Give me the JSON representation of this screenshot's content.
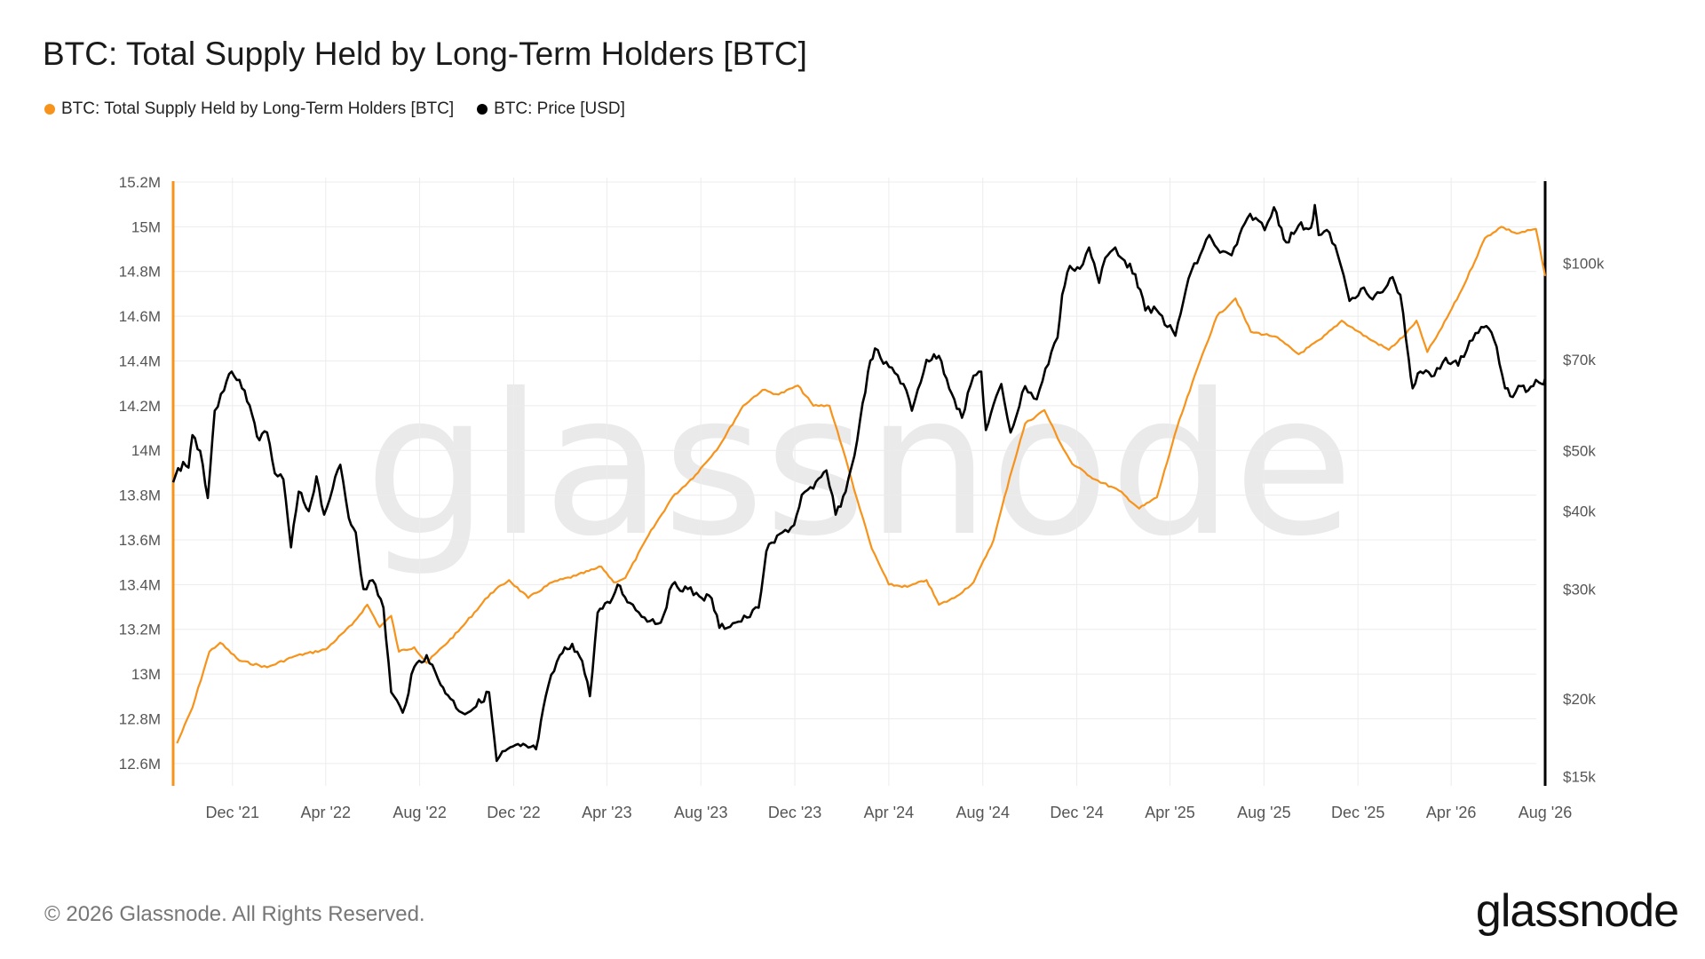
{
  "title": "BTC: Total Supply Held by Long-Term Holders [BTC]",
  "footer": {
    "copyright": "© 2026 Glassnode. All Rights Reserved."
  },
  "brand": {
    "logo_text": "glassnode",
    "watermark": "glassnode"
  },
  "colors": {
    "supply": "#f7931a",
    "price": "#000000",
    "grid": "#ececec",
    "axis_text": "#555555",
    "watermark": "#eaeaea"
  },
  "chart_data": {
    "type": "line",
    "title": "BTC: Total Supply Held by Long-Term Holders [BTC]",
    "legend_position": "top-left",
    "grid": true,
    "x_range": [
      "2021-09-15",
      "2026-08-01"
    ],
    "x_ticks": [
      {
        "date": "2021-12-01",
        "label": "Dec '21"
      },
      {
        "date": "2022-04-01",
        "label": "Apr '22"
      },
      {
        "date": "2022-08-01",
        "label": "Aug '22"
      },
      {
        "date": "2022-12-01",
        "label": "Dec '22"
      },
      {
        "date": "2023-04-01",
        "label": "Apr '23"
      },
      {
        "date": "2023-08-01",
        "label": "Aug '23"
      },
      {
        "date": "2023-12-01",
        "label": "Dec '23"
      },
      {
        "date": "2024-04-01",
        "label": "Apr '24"
      },
      {
        "date": "2024-08-01",
        "label": "Aug '24"
      },
      {
        "date": "2024-12-01",
        "label": "Dec '24"
      },
      {
        "date": "2025-04-01",
        "label": "Apr '25"
      },
      {
        "date": "2025-08-01",
        "label": "Aug '25"
      },
      {
        "date": "2025-12-01",
        "label": "Dec '25"
      },
      {
        "date": "2026-04-01",
        "label": "Apr '26"
      },
      {
        "date": "2026-08-01",
        "label": "Aug '26"
      }
    ],
    "y_left": {
      "range": [
        12.5,
        15.2
      ],
      "unit": "M BTC",
      "ticks": [
        {
          "value": 15.2,
          "label": "15.2M"
        },
        {
          "value": 15.0,
          "label": "15M"
        },
        {
          "value": 14.8,
          "label": "14.8M"
        },
        {
          "value": 14.6,
          "label": "14.6M"
        },
        {
          "value": 14.4,
          "label": "14.4M"
        },
        {
          "value": 14.2,
          "label": "14.2M"
        },
        {
          "value": 14.0,
          "label": "14M"
        },
        {
          "value": 13.8,
          "label": "13.8M"
        },
        {
          "value": 13.6,
          "label": "13.6M"
        },
        {
          "value": 13.4,
          "label": "13.4M"
        },
        {
          "value": 13.2,
          "label": "13.2M"
        },
        {
          "value": 13.0,
          "label": "13M"
        },
        {
          "value": 12.8,
          "label": "12.8M"
        },
        {
          "value": 12.6,
          "label": "12.6M"
        }
      ]
    },
    "y_right": {
      "scale": "log",
      "range": [
        14500,
        135000
      ],
      "ticks": [
        {
          "value": 100000,
          "label": "$100k"
        },
        {
          "value": 70000,
          "label": "$70k"
        },
        {
          "value": 50000,
          "label": "$50k"
        },
        {
          "value": 40000,
          "label": "$40k"
        },
        {
          "value": 30000,
          "label": "$30k"
        },
        {
          "value": 20000,
          "label": "$20k"
        },
        {
          "value": 15000,
          "label": "$15k"
        }
      ]
    },
    "series": [
      {
        "name": "BTC: Total Supply Held by Long-Term Holders [BTC]",
        "axis": "left",
        "color": "#f7931a",
        "points": [
          [
            "2021-09-20",
            12.69
          ],
          [
            "2021-10-10",
            12.85
          ],
          [
            "2021-11-01",
            13.1
          ],
          [
            "2021-11-15",
            13.14
          ],
          [
            "2021-12-10",
            13.06
          ],
          [
            "2022-01-15",
            13.03
          ],
          [
            "2022-02-20",
            13.08
          ],
          [
            "2022-04-01",
            13.11
          ],
          [
            "2022-05-05",
            13.22
          ],
          [
            "2022-05-25",
            13.31
          ],
          [
            "2022-06-10",
            13.21
          ],
          [
            "2022-06-25",
            13.26
          ],
          [
            "2022-07-05",
            13.1
          ],
          [
            "2022-07-25",
            13.12
          ],
          [
            "2022-08-10",
            13.05
          ],
          [
            "2022-09-20",
            13.19
          ],
          [
            "2022-11-01",
            13.36
          ],
          [
            "2022-11-25",
            13.42
          ],
          [
            "2022-12-20",
            13.34
          ],
          [
            "2023-01-20",
            13.41
          ],
          [
            "2023-02-20",
            13.44
          ],
          [
            "2023-03-25",
            13.48
          ],
          [
            "2023-04-10",
            13.41
          ],
          [
            "2023-04-25",
            13.43
          ],
          [
            "2023-05-25",
            13.62
          ],
          [
            "2023-06-25",
            13.79
          ],
          [
            "2023-07-25",
            13.89
          ],
          [
            "2023-08-25",
            14.02
          ],
          [
            "2023-09-25",
            14.2
          ],
          [
            "2023-10-20",
            14.27
          ],
          [
            "2023-11-10",
            14.25
          ],
          [
            "2023-12-05",
            14.29
          ],
          [
            "2023-12-25",
            14.2
          ],
          [
            "2024-01-15",
            14.2
          ],
          [
            "2024-02-01",
            14.01
          ],
          [
            "2024-02-20",
            13.78
          ],
          [
            "2024-03-10",
            13.56
          ],
          [
            "2024-04-01",
            13.4
          ],
          [
            "2024-04-25",
            13.39
          ],
          [
            "2024-05-20",
            13.42
          ],
          [
            "2024-06-05",
            13.31
          ],
          [
            "2024-06-25",
            13.34
          ],
          [
            "2024-07-20",
            13.41
          ],
          [
            "2024-08-15",
            13.6
          ],
          [
            "2024-09-05",
            13.88
          ],
          [
            "2024-09-25",
            14.12
          ],
          [
            "2024-10-20",
            14.18
          ],
          [
            "2024-11-10",
            14.03
          ],
          [
            "2024-11-25",
            13.94
          ],
          [
            "2024-12-25",
            13.87
          ],
          [
            "2025-01-25",
            13.82
          ],
          [
            "2025-02-20",
            13.74
          ],
          [
            "2025-03-15",
            13.79
          ],
          [
            "2025-04-10",
            14.1
          ],
          [
            "2025-05-10",
            14.4
          ],
          [
            "2025-06-01",
            14.6
          ],
          [
            "2025-06-25",
            14.68
          ],
          [
            "2025-07-15",
            14.53
          ],
          [
            "2025-08-15",
            14.51
          ],
          [
            "2025-09-15",
            14.43
          ],
          [
            "2025-10-15",
            14.5
          ],
          [
            "2025-11-10",
            14.58
          ],
          [
            "2025-12-15",
            14.5
          ],
          [
            "2026-01-10",
            14.45
          ],
          [
            "2026-02-01",
            14.52
          ],
          [
            "2026-02-15",
            14.58
          ],
          [
            "2026-03-01",
            14.44
          ],
          [
            "2026-03-20",
            14.55
          ],
          [
            "2026-04-15",
            14.72
          ],
          [
            "2026-05-15",
            14.95
          ],
          [
            "2026-06-05",
            15.0
          ],
          [
            "2026-06-25",
            14.97
          ],
          [
            "2026-07-20",
            14.99
          ],
          [
            "2026-08-01",
            14.78
          ]
        ]
      },
      {
        "name": "BTC: Price [USD]",
        "axis": "right",
        "color": "#000000",
        "points": [
          [
            "2021-09-15",
            44500
          ],
          [
            "2021-09-28",
            48000
          ],
          [
            "2021-10-05",
            47000
          ],
          [
            "2021-10-10",
            53000
          ],
          [
            "2021-10-20",
            50000
          ],
          [
            "2021-10-30",
            42000
          ],
          [
            "2021-11-08",
            58000
          ],
          [
            "2021-11-20",
            62500
          ],
          [
            "2021-11-30",
            67000
          ],
          [
            "2021-12-10",
            65000
          ],
          [
            "2021-12-20",
            60000
          ],
          [
            "2022-01-05",
            52000
          ],
          [
            "2022-01-15",
            53500
          ],
          [
            "2022-01-25",
            46000
          ],
          [
            "2022-02-05",
            45000
          ],
          [
            "2022-02-15",
            35000
          ],
          [
            "2022-02-25",
            43000
          ],
          [
            "2022-03-10",
            40000
          ],
          [
            "2022-03-20",
            45500
          ],
          [
            "2022-03-30",
            39500
          ],
          [
            "2022-04-10",
            43500
          ],
          [
            "2022-04-20",
            47500
          ],
          [
            "2022-05-01",
            39000
          ],
          [
            "2022-05-10",
            37000
          ],
          [
            "2022-05-20",
            30000
          ],
          [
            "2022-06-01",
            31000
          ],
          [
            "2022-06-15",
            28000
          ],
          [
            "2022-06-25",
            20500
          ],
          [
            "2022-07-10",
            19000
          ],
          [
            "2022-07-25",
            22500
          ],
          [
            "2022-08-10",
            23500
          ],
          [
            "2022-08-25",
            21500
          ],
          [
            "2022-09-10",
            20000
          ],
          [
            "2022-09-25",
            19000
          ],
          [
            "2022-10-10",
            19300
          ],
          [
            "2022-10-30",
            20500
          ],
          [
            "2022-11-09",
            15900
          ],
          [
            "2022-11-20",
            16500
          ],
          [
            "2022-12-10",
            16800
          ],
          [
            "2022-12-30",
            16600
          ],
          [
            "2023-01-15",
            21000
          ],
          [
            "2023-01-30",
            23500
          ],
          [
            "2023-02-15",
            24500
          ],
          [
            "2023-02-28",
            23000
          ],
          [
            "2023-03-10",
            20200
          ],
          [
            "2023-03-20",
            27500
          ],
          [
            "2023-04-05",
            28500
          ],
          [
            "2023-04-15",
            30500
          ],
          [
            "2023-05-01",
            28500
          ],
          [
            "2023-05-20",
            27000
          ],
          [
            "2023-06-10",
            26500
          ],
          [
            "2023-06-25",
            30500
          ],
          [
            "2023-07-15",
            30000
          ],
          [
            "2023-07-30",
            29200
          ],
          [
            "2023-08-15",
            29000
          ],
          [
            "2023-08-25",
            26000
          ],
          [
            "2023-09-15",
            26500
          ],
          [
            "2023-09-30",
            27000
          ],
          [
            "2023-10-15",
            28000
          ],
          [
            "2023-10-25",
            34500
          ],
          [
            "2023-11-15",
            37000
          ],
          [
            "2023-11-30",
            38000
          ],
          [
            "2023-12-10",
            42500
          ],
          [
            "2023-12-25",
            43500
          ],
          [
            "2024-01-11",
            46500
          ],
          [
            "2024-01-23",
            39500
          ],
          [
            "2024-02-05",
            43000
          ],
          [
            "2024-02-20",
            52000
          ],
          [
            "2024-03-05",
            67000
          ],
          [
            "2024-03-14",
            73000
          ],
          [
            "2024-03-25",
            69000
          ],
          [
            "2024-04-05",
            68000
          ],
          [
            "2024-04-20",
            64000
          ],
          [
            "2024-05-01",
            58000
          ],
          [
            "2024-05-20",
            70000
          ],
          [
            "2024-06-05",
            71000
          ],
          [
            "2024-06-25",
            60500
          ],
          [
            "2024-07-05",
            56500
          ],
          [
            "2024-07-20",
            66000
          ],
          [
            "2024-07-30",
            67000
          ],
          [
            "2024-08-05",
            54000
          ],
          [
            "2024-08-25",
            64000
          ],
          [
            "2024-09-06",
            53500
          ],
          [
            "2024-09-25",
            63500
          ],
          [
            "2024-10-10",
            60500
          ],
          [
            "2024-10-29",
            72000
          ],
          [
            "2024-11-06",
            76000
          ],
          [
            "2024-11-12",
            89000
          ],
          [
            "2024-11-22",
            99000
          ],
          [
            "2024-12-05",
            98000
          ],
          [
            "2024-12-17",
            106000
          ],
          [
            "2024-12-30",
            93000
          ],
          [
            "2025-01-07",
            102000
          ],
          [
            "2025-01-20",
            106000
          ],
          [
            "2025-02-01",
            101000
          ],
          [
            "2025-02-15",
            96000
          ],
          [
            "2025-02-28",
            84000
          ],
          [
            "2025-03-15",
            84000
          ],
          [
            "2025-04-08",
            76500
          ],
          [
            "2025-04-25",
            94500
          ],
          [
            "2025-05-10",
            103000
          ],
          [
            "2025-05-22",
            111000
          ],
          [
            "2025-06-05",
            104000
          ],
          [
            "2025-06-20",
            103000
          ],
          [
            "2025-07-14",
            120000
          ],
          [
            "2025-07-25",
            117000
          ],
          [
            "2025-08-02",
            113000
          ],
          [
            "2025-08-14",
            123000
          ],
          [
            "2025-08-30",
            108000
          ],
          [
            "2025-09-15",
            115000
          ],
          [
            "2025-10-01",
            114000
          ],
          [
            "2025-10-06",
            124000
          ],
          [
            "2025-10-11",
            111000
          ],
          [
            "2025-10-25",
            112000
          ],
          [
            "2025-11-05",
            103000
          ],
          [
            "2025-11-20",
            87000
          ],
          [
            "2025-12-05",
            91000
          ],
          [
            "2025-12-20",
            87500
          ],
          [
            "2026-01-05",
            91000
          ],
          [
            "2026-01-15",
            95000
          ],
          [
            "2026-01-25",
            89000
          ],
          [
            "2026-02-05",
            70000
          ],
          [
            "2026-02-10",
            63000
          ],
          [
            "2026-02-20",
            67000
          ],
          [
            "2026-03-10",
            66000
          ],
          [
            "2026-03-25",
            70500
          ],
          [
            "2026-04-10",
            68500
          ],
          [
            "2026-04-25",
            75000
          ],
          [
            "2026-05-10",
            79000
          ],
          [
            "2026-05-20",
            78500
          ],
          [
            "2026-05-30",
            73500
          ],
          [
            "2026-06-10",
            63000
          ],
          [
            "2026-06-20",
            61000
          ],
          [
            "2026-07-01",
            63500
          ],
          [
            "2026-07-10",
            62500
          ],
          [
            "2026-07-20",
            65000
          ],
          [
            "2026-07-28",
            64000
          ],
          [
            "2026-08-01",
            65500
          ]
        ]
      }
    ]
  }
}
